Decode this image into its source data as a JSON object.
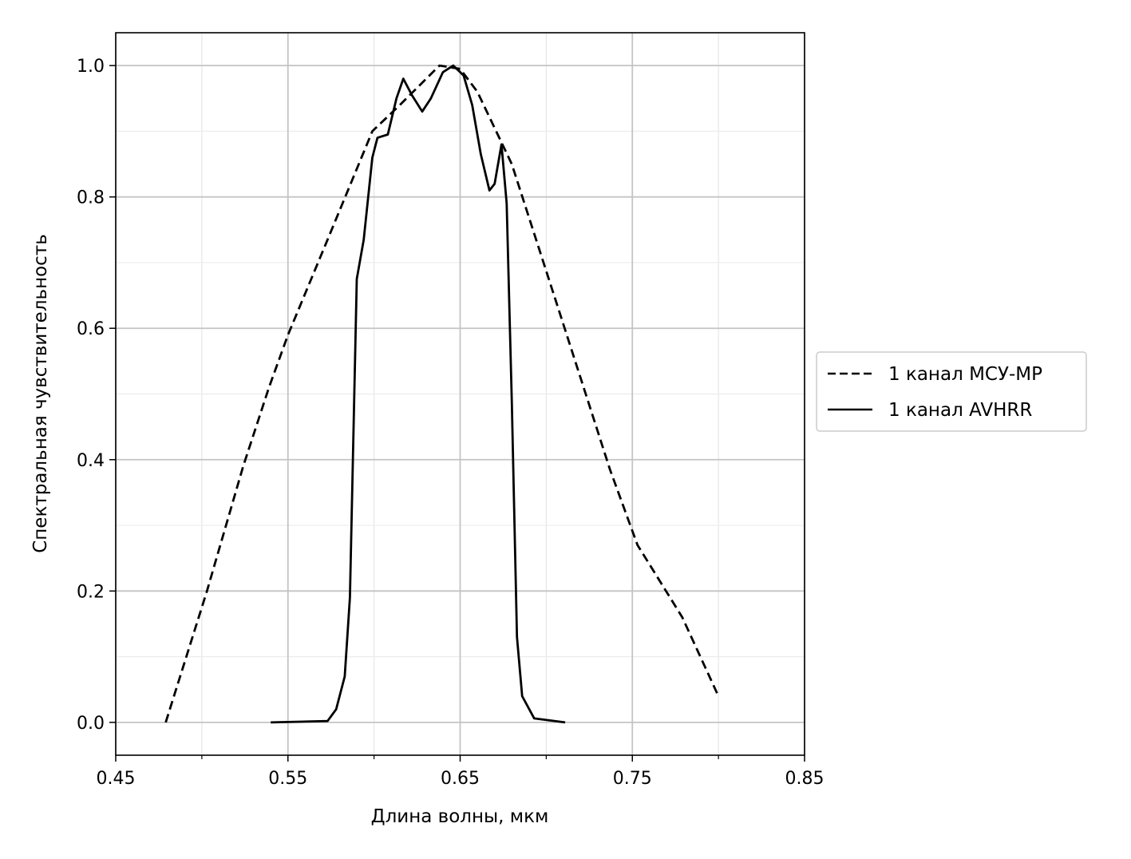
{
  "chart_data": {
    "type": "line",
    "title": "",
    "xlabel": "Длина волны, мкм",
    "ylabel": "Спектральная чувствительность",
    "xlim": [
      0.45,
      0.85
    ],
    "ylim": [
      -0.05,
      1.05
    ],
    "xticks": [
      0.45,
      0.55,
      0.65,
      0.75,
      0.85
    ],
    "xtick_labels": [
      "0.45",
      "0.55",
      "0.65",
      "0.75",
      "0.85"
    ],
    "xminor": [
      0.5,
      0.6,
      0.7,
      0.8
    ],
    "yticks": [
      0.0,
      0.2,
      0.4,
      0.6,
      0.8,
      1.0
    ],
    "ytick_labels": [
      "0.0",
      "0.2",
      "0.4",
      "0.6",
      "0.8",
      "1.0"
    ],
    "grid": true,
    "legend_position": "outside-right",
    "series": [
      {
        "name": "1 канал МСУ-МР",
        "style": "dashed",
        "color": "#000000",
        "x": [
          0.479,
          0.503,
          0.524,
          0.539,
          0.55,
          0.573,
          0.599,
          0.615,
          0.638,
          0.65,
          0.66,
          0.68,
          0.707,
          0.737,
          0.753,
          0.779,
          0.8
        ],
        "y": [
          0.0,
          0.2,
          0.39,
          0.51,
          0.59,
          0.735,
          0.9,
          0.94,
          1.0,
          0.995,
          0.96,
          0.85,
          0.63,
          0.385,
          0.27,
          0.16,
          0.04
        ]
      },
      {
        "name": "1 канал AVHRR",
        "style": "solid",
        "color": "#000000",
        "x": [
          0.54,
          0.573,
          0.578,
          0.583,
          0.586,
          0.59,
          0.594,
          0.599,
          0.602,
          0.608,
          0.613,
          0.617,
          0.622,
          0.628,
          0.633,
          0.64,
          0.646,
          0.652,
          0.657,
          0.662,
          0.667,
          0.67,
          0.674,
          0.677,
          0.68,
          0.683,
          0.686,
          0.693,
          0.711
        ],
        "y": [
          0.0,
          0.002,
          0.02,
          0.07,
          0.19,
          0.675,
          0.735,
          0.86,
          0.89,
          0.895,
          0.95,
          0.98,
          0.955,
          0.93,
          0.95,
          0.99,
          1.0,
          0.985,
          0.94,
          0.865,
          0.81,
          0.82,
          0.88,
          0.79,
          0.49,
          0.13,
          0.04,
          0.006,
          0.0
        ]
      }
    ]
  }
}
